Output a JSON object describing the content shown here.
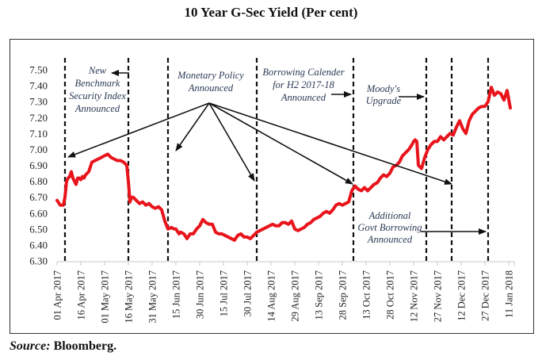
{
  "title": "10 Year G-Sec Yield (Per cent)",
  "source": {
    "label": "Source:",
    "text": "Bloomberg."
  },
  "chart_data": {
    "type": "line",
    "title": "10 Year G-Sec Yield (Per cent)",
    "xlabel": "",
    "ylabel": "",
    "ylim": [
      6.3,
      7.5
    ],
    "yticks": [
      "7.50",
      "7.40",
      "7.30",
      "7.20",
      "7.10",
      "7.00",
      "6.90",
      "6.80",
      "6.70",
      "6.60",
      "6.50",
      "6.40",
      "6.30"
    ],
    "ytick_values": [
      7.5,
      7.4,
      7.3,
      7.2,
      7.1,
      7.0,
      6.9,
      6.8,
      6.7,
      6.6,
      6.5,
      6.4,
      6.3
    ],
    "x_start": "01 Apr 2017",
    "x_unit": "days since 01 Apr 2017",
    "xlim_days": [
      0,
      288
    ],
    "xticks": [
      "01 Apr 2017",
      "16 Apr 2017",
      "01 May 2017",
      "16 May 2017",
      "31 May 2017",
      "15 Jun 2017",
      "30 Jun 2017",
      "15 Jul 2017",
      "30 Jul 2017",
      "14 Aug 2017",
      "29 Aug 2017",
      "13 Sep 2017",
      "28 Sep 2017",
      "13 Oct 2017",
      "28 Oct 2017",
      "12 Nov 2017",
      "27 Nov 2017",
      "12 Dec 2017",
      "27 Dec 2017",
      "11 Jan 2018"
    ],
    "xtick_days": [
      0,
      15,
      30,
      45,
      60,
      75,
      90,
      105,
      120,
      135,
      150,
      165,
      180,
      195,
      210,
      225,
      240,
      255,
      270,
      285
    ],
    "grid": false,
    "legend": "none",
    "series": [
      {
        "name": "10 Year G-Sec Yield",
        "color": "#e8141c",
        "x": [
          0,
          2,
          4,
          5,
          6,
          7,
          8,
          9,
          10,
          11,
          12,
          13,
          14,
          15,
          16,
          17,
          18,
          20,
          22,
          24,
          26,
          28,
          30,
          32,
          34,
          36,
          38,
          40,
          42,
          44,
          45,
          46,
          47,
          48,
          50,
          52,
          54,
          56,
          58,
          60,
          62,
          64,
          66,
          68,
          70,
          72,
          74,
          75,
          77,
          78,
          80,
          82,
          84,
          86,
          88,
          90,
          92,
          94,
          96,
          98,
          100,
          102,
          104,
          106,
          108,
          110,
          112,
          114,
          116,
          118,
          120,
          122,
          124,
          126,
          128,
          130,
          132,
          134,
          136,
          138,
          140,
          142,
          144,
          146,
          148,
          150,
          152,
          154,
          156,
          158,
          160,
          162,
          164,
          166,
          168,
          170,
          172,
          174,
          176,
          178,
          180,
          182,
          184,
          186,
          188,
          190,
          192,
          194,
          196,
          198,
          200,
          202,
          204,
          206,
          208,
          210,
          212,
          214,
          216,
          218,
          220,
          222,
          224,
          225,
          226,
          227,
          228,
          230,
          232,
          234,
          236,
          238,
          240,
          242,
          244,
          246,
          248,
          250,
          252,
          254,
          256,
          258,
          260,
          262,
          264,
          266,
          268,
          270,
          272,
          274,
          276,
          278,
          280,
          282,
          284,
          286
        ],
        "values": [
          6.68,
          6.65,
          6.65,
          6.7,
          6.8,
          6.82,
          6.83,
          6.86,
          6.82,
          6.8,
          6.78,
          6.82,
          6.82,
          6.81,
          6.83,
          6.82,
          6.84,
          6.86,
          6.92,
          6.93,
          6.94,
          6.95,
          6.96,
          6.97,
          6.95,
          6.94,
          6.93,
          6.93,
          6.92,
          6.9,
          6.8,
          6.67,
          6.7,
          6.7,
          6.68,
          6.66,
          6.67,
          6.65,
          6.66,
          6.64,
          6.63,
          6.64,
          6.62,
          6.55,
          6.5,
          6.51,
          6.5,
          6.5,
          6.47,
          6.48,
          6.47,
          6.44,
          6.47,
          6.47,
          6.5,
          6.52,
          6.56,
          6.54,
          6.53,
          6.53,
          6.48,
          6.47,
          6.47,
          6.46,
          6.45,
          6.44,
          6.43,
          6.46,
          6.47,
          6.45,
          6.45,
          6.44,
          6.46,
          6.48,
          6.49,
          6.5,
          6.51,
          6.52,
          6.53,
          6.52,
          6.52,
          6.54,
          6.54,
          6.53,
          6.55,
          6.5,
          6.49,
          6.5,
          6.51,
          6.53,
          6.54,
          6.56,
          6.57,
          6.58,
          6.6,
          6.61,
          6.6,
          6.62,
          6.65,
          6.66,
          6.65,
          6.66,
          6.67,
          6.74,
          6.77,
          6.75,
          6.74,
          6.76,
          6.74,
          6.76,
          6.78,
          6.79,
          6.82,
          6.84,
          6.83,
          6.85,
          6.89,
          6.9,
          6.92,
          6.96,
          6.98,
          7.0,
          7.03,
          7.05,
          7.06,
          7.05,
          6.9,
          6.88,
          6.95,
          7.0,
          7.03,
          7.05,
          7.05,
          7.08,
          7.06,
          7.08,
          7.1,
          7.09,
          7.14,
          7.18,
          7.13,
          7.1,
          7.18,
          7.22,
          7.24,
          7.26,
          7.27,
          7.27,
          7.3,
          7.39,
          7.34,
          7.36,
          7.35,
          7.31,
          7.37,
          7.26
        ]
      }
    ],
    "event_lines": [
      {
        "name": "new-benchmark",
        "day": 5
      },
      {
        "name": "may-policy",
        "day": 45
      },
      {
        "name": "june-policy",
        "day": 70
      },
      {
        "name": "aug-policy",
        "day": 126
      },
      {
        "name": "borrowing-calender",
        "day": 187
      },
      {
        "name": "moodys-upgrade",
        "day": 233
      },
      {
        "name": "dec-policy",
        "day": 249
      },
      {
        "name": "additional-borrowing",
        "day": 272
      }
    ],
    "annotations": [
      {
        "id": "new_benchmark",
        "lines": [
          "New",
          "Benchmark",
          "Security Index",
          "Announced"
        ]
      },
      {
        "id": "monetary_policy",
        "lines": [
          "Monetary Policy",
          "Announced"
        ]
      },
      {
        "id": "borrowing_calender",
        "lines": [
          "Borrowing Calender",
          "for H2 2017-18",
          "Announced"
        ]
      },
      {
        "id": "moodys",
        "lines": [
          "Moody's",
          "Upgrade"
        ]
      },
      {
        "id": "additional_borrowing",
        "lines": [
          "Additional",
          "Govt Borrowing",
          "Announced"
        ]
      }
    ]
  }
}
